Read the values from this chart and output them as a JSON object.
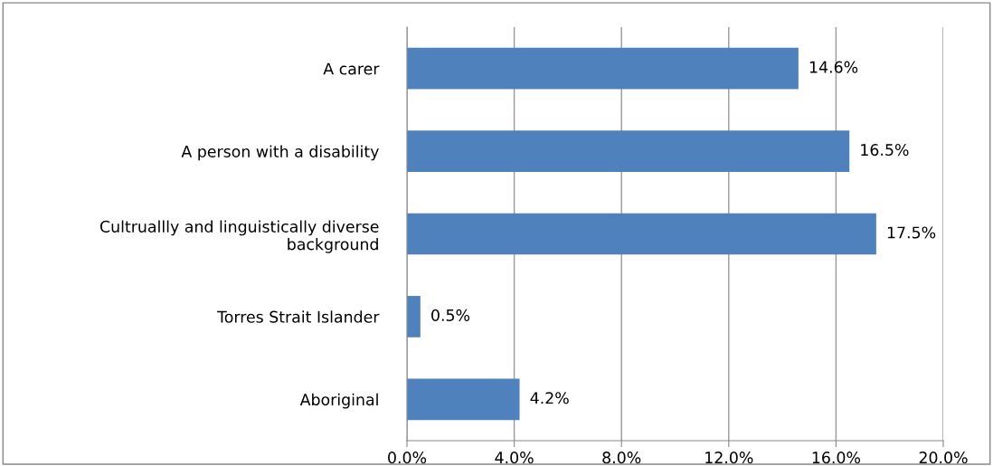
{
  "chart_data": {
    "type": "bar",
    "orientation": "horizontal",
    "categories": [
      "A carer",
      "A person with a disability",
      "Cultruallly and linguistically diverse\nbackground",
      "Torres Strait Islander",
      "Aboriginal"
    ],
    "values": [
      14.6,
      16.5,
      17.5,
      0.5,
      4.2
    ],
    "value_labels": [
      "14.6%",
      "16.5%",
      "17.5%",
      "0.5%",
      "4.2%"
    ],
    "color": "#4f81bd",
    "xlim": [
      0,
      20
    ],
    "xticks": [
      {
        "value": 0,
        "label": "0.0%"
      },
      {
        "value": 4,
        "label": "4.0%"
      },
      {
        "value": 8,
        "label": "8.0%"
      },
      {
        "value": 12,
        "label": "12.0%"
      },
      {
        "value": 16,
        "label": "16.0%"
      },
      {
        "value": 20,
        "label": "20.0%"
      }
    ],
    "grid": "x",
    "legend": false
  }
}
